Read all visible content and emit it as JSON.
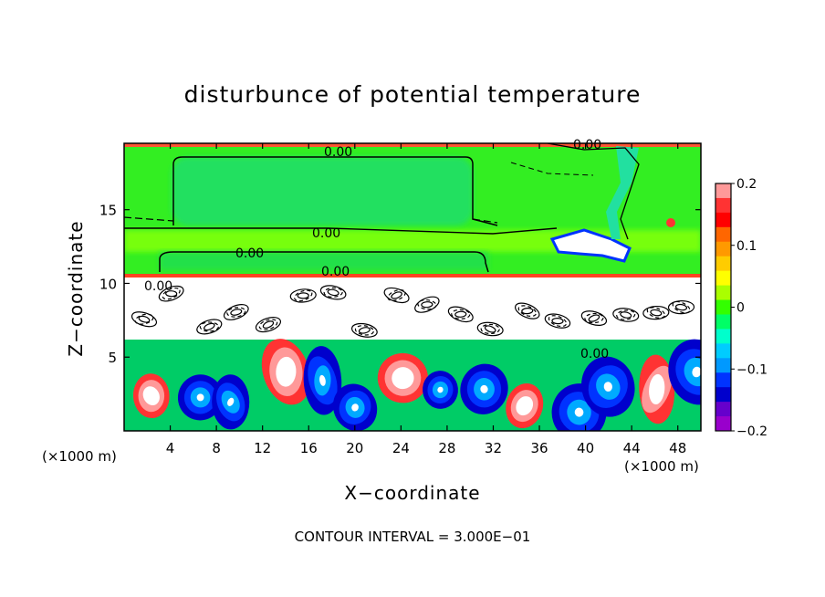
{
  "chart_data": {
    "type": "heatmap",
    "title": "disturbunce of potential temperature",
    "xlabel": "X−coordinate",
    "ylabel": "Z−coordinate",
    "x_unit_left": "(×1000 m)",
    "x_unit_right": "(×1000 m)",
    "xlim": [
      0,
      50
    ],
    "ylim": [
      0,
      19.5
    ],
    "x_ticks": [
      4,
      8,
      12,
      16,
      20,
      24,
      28,
      32,
      36,
      40,
      44,
      48
    ],
    "y_ticks": [
      5,
      10,
      15
    ],
    "colorbar": {
      "ticks": [
        0.2,
        0.1,
        0,
        -0.1,
        -0.2
      ],
      "tick_labels": [
        "0.2",
        "0.1",
        "0",
        "−0.1",
        "−0.2"
      ],
      "range": [
        -0.2,
        0.2
      ],
      "colors": [
        "#ff9999",
        "#ff3333",
        "#ff0000",
        "#ff6600",
        "#ff9900",
        "#ffcc00",
        "#ffff00",
        "#aaff00",
        "#33ff00",
        "#00ff66",
        "#00ffcc",
        "#00ccff",
        "#0099ff",
        "#0033ff",
        "#0000cc",
        "#6600cc",
        "#9900cc"
      ]
    },
    "contour_labels": [
      "0.00",
      "0.00",
      "0.00",
      "0.00",
      "0.00",
      "0.00",
      "0.00"
    ],
    "contour_interval_text": "CONTOUR INTERVAL =  3.000E−01"
  }
}
